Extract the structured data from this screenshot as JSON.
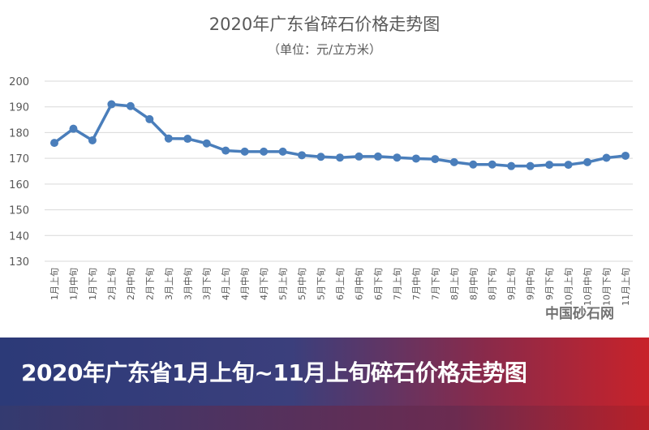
{
  "chart_data": {
    "type": "line",
    "title": "2020年广东省碎石价格走势图",
    "subtitle": "（单位：元/立方米）",
    "ylim": [
      130,
      200
    ],
    "yticks": [
      130,
      140,
      150,
      160,
      170,
      180,
      190,
      200
    ],
    "grid": true,
    "color": "#4a7ebb",
    "categories": [
      "1月上旬",
      "1月中旬",
      "1月下旬",
      "2月上旬",
      "2月中旬",
      "2月下旬",
      "3月上旬",
      "3月中旬",
      "3月下旬",
      "4月上旬",
      "4月中旬",
      "4月下旬",
      "5月上旬",
      "5月中旬",
      "5月下旬",
      "6月上旬",
      "6月中旬",
      "6月下旬",
      "7月上旬",
      "7月中旬",
      "7月下旬",
      "8月上旬",
      "8月中旬",
      "8月下旬",
      "9月上旬",
      "9月中旬",
      "9月下旬",
      "10月上旬",
      "10月中旬",
      "10月下旬",
      "11月上旬"
    ],
    "values": [
      176,
      181.5,
      177,
      191,
      190.3,
      185.2,
      177.7,
      177.6,
      175.8,
      173,
      172.6,
      172.6,
      172.6,
      171.2,
      170.6,
      170.3,
      170.7,
      170.7,
      170.3,
      169.9,
      169.7,
      168.5,
      167.6,
      167.6,
      167,
      167,
      167.5,
      167.5,
      168.5,
      170.2,
      171
    ]
  },
  "watermark": "中国砂石网",
  "banner": {
    "text": "2020年广东省1月上旬~11月上旬碎石价格走势图"
  }
}
